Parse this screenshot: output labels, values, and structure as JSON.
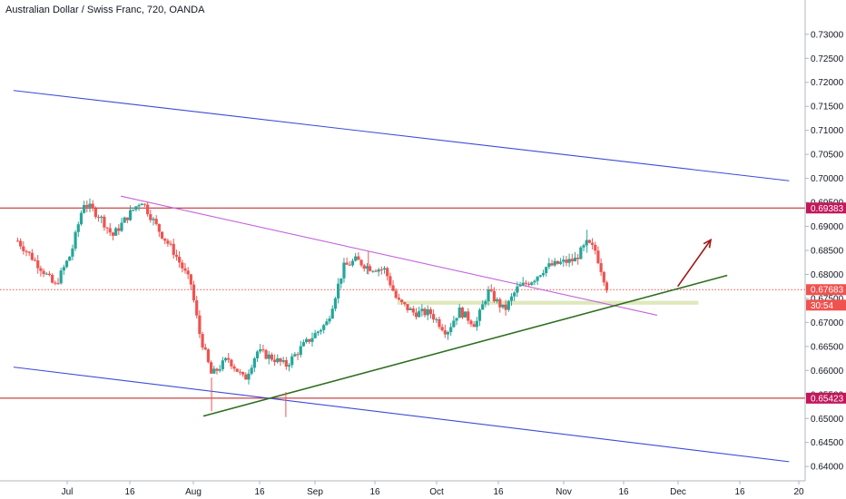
{
  "chart_data": {
    "type": "candlestick",
    "title": "Australian Dollar / Swiss Franc, 720, OANDA",
    "y_ticks": [
      "0.73000",
      "0.72500",
      "0.72000",
      "0.71500",
      "0.71000",
      "0.70500",
      "0.70000",
      "0.69500",
      "0.69000",
      "0.68500",
      "0.68000",
      "0.67500",
      "0.67000",
      "0.66500",
      "0.66000",
      "0.65500",
      "0.65000",
      "0.64500",
      "0.64000"
    ],
    "y_range": [
      0.6372,
      0.7345
    ],
    "x_ticks": [
      "Jul",
      "16",
      "Aug",
      "16",
      "Sep",
      "16",
      "Oct",
      "16",
      "Nov",
      "16",
      "Dec",
      "16",
      "20"
    ],
    "price_tags": [
      {
        "label": "0.69383",
        "value": 0.69383,
        "color": "#c2185b"
      },
      {
        "label": "0.67683",
        "value": 0.67683,
        "color": "#ef5350"
      },
      {
        "label": "30:54",
        "value": 0.6755,
        "color": "#ef5350"
      },
      {
        "label": "0.65423",
        "value": 0.65423,
        "color": "#c2185b"
      }
    ],
    "horizontal_levels": [
      {
        "value": 0.69383,
        "color": "#b71c1c",
        "style": "solid"
      },
      {
        "value": 0.65423,
        "color": "#b71c1c",
        "style": "solid"
      },
      {
        "value": 0.67683,
        "color": "#ef5350",
        "style": "dotted"
      }
    ],
    "support_zone": {
      "from": 0.6745,
      "to": 0.6737,
      "color": "#d8e4b0"
    },
    "price_path": [
      {
        "date": "Jun 19",
        "value": 0.687
      },
      {
        "date": "Jun 25",
        "value": 0.681
      },
      {
        "date": "Jun 28",
        "value": 0.6775
      },
      {
        "date": "Jul 2",
        "value": 0.6845
      },
      {
        "date": "Jul 5",
        "value": 0.695
      },
      {
        "date": "Jul 9",
        "value": 0.692
      },
      {
        "date": "Jul 12",
        "value": 0.688
      },
      {
        "date": "Jul 16",
        "value": 0.6925
      },
      {
        "date": "Jul 19",
        "value": 0.6955
      },
      {
        "date": "Jul 23",
        "value": 0.6895
      },
      {
        "date": "Jul 27",
        "value": 0.6845
      },
      {
        "date": "Jul 31",
        "value": 0.678
      },
      {
        "date": "Aug 2",
        "value": 0.668
      },
      {
        "date": "Aug 5",
        "value": 0.659
      },
      {
        "date": "Aug 9",
        "value": 0.6625
      },
      {
        "date": "Aug 13",
        "value": 0.658
      },
      {
        "date": "Aug 16",
        "value": 0.664
      },
      {
        "date": "Aug 20",
        "value": 0.6625
      },
      {
        "date": "Aug 23",
        "value": 0.661
      },
      {
        "date": "Aug 27",
        "value": 0.665
      },
      {
        "date": "Sep 2",
        "value": 0.67
      },
      {
        "date": "Sep 6",
        "value": 0.6815
      },
      {
        "date": "Sep 9",
        "value": 0.683
      },
      {
        "date": "Sep 12",
        "value": 0.6815
      },
      {
        "date": "Sep 16",
        "value": 0.681
      },
      {
        "date": "Sep 19",
        "value": 0.6745
      },
      {
        "date": "Sep 23",
        "value": 0.672
      },
      {
        "date": "Sep 27",
        "value": 0.672
      },
      {
        "date": "Oct 1",
        "value": 0.668
      },
      {
        "date": "Oct 4",
        "value": 0.6725
      },
      {
        "date": "Oct 8",
        "value": 0.6695
      },
      {
        "date": "Oct 11",
        "value": 0.6765
      },
      {
        "date": "Oct 15",
        "value": 0.6725
      },
      {
        "date": "Oct 18",
        "value": 0.677
      },
      {
        "date": "Oct 22",
        "value": 0.679
      },
      {
        "date": "Oct 25",
        "value": 0.6815
      },
      {
        "date": "Oct 29",
        "value": 0.6825
      },
      {
        "date": "Nov 1",
        "value": 0.683
      },
      {
        "date": "Nov 4",
        "value": 0.6865
      },
      {
        "date": "Nov 6",
        "value": 0.685
      },
      {
        "date": "Nov 8",
        "value": 0.6795
      },
      {
        "date": "Nov 9",
        "value": 0.6768
      }
    ],
    "trend_lines": [
      {
        "name": "upper-channel",
        "color": "#3d4bd6",
        "from": {
          "date": "Jun 18",
          "value": 0.7183
        },
        "to": {
          "date": "Dec 23",
          "value": 0.6995
        }
      },
      {
        "name": "lower-channel",
        "color": "#3d4bd6",
        "from": {
          "date": "Jun 18",
          "value": 0.6607
        },
        "to": {
          "date": "Dec 23",
          "value": 0.641
        }
      },
      {
        "name": "descending-resistance",
        "color": "#c463db",
        "from": {
          "date": "Jul 14",
          "value": 0.6963
        },
        "to": {
          "date": "Nov 21",
          "value": 0.6715
        }
      },
      {
        "name": "ascending-support",
        "color": "#2e6e1e",
        "from": {
          "date": "Aug 3",
          "value": 0.6505
        },
        "to": {
          "date": "Dec 8",
          "value": 0.6798
        }
      }
    ],
    "arrow": {
      "color": "#a31515",
      "from": {
        "date": "Nov 26",
        "value": 0.6775
      },
      "to": {
        "date": "Dec 4",
        "value": 0.6872
      }
    },
    "grid": false,
    "candle_colors": {
      "up": "#26a69a",
      "down": "#ef5350"
    }
  }
}
